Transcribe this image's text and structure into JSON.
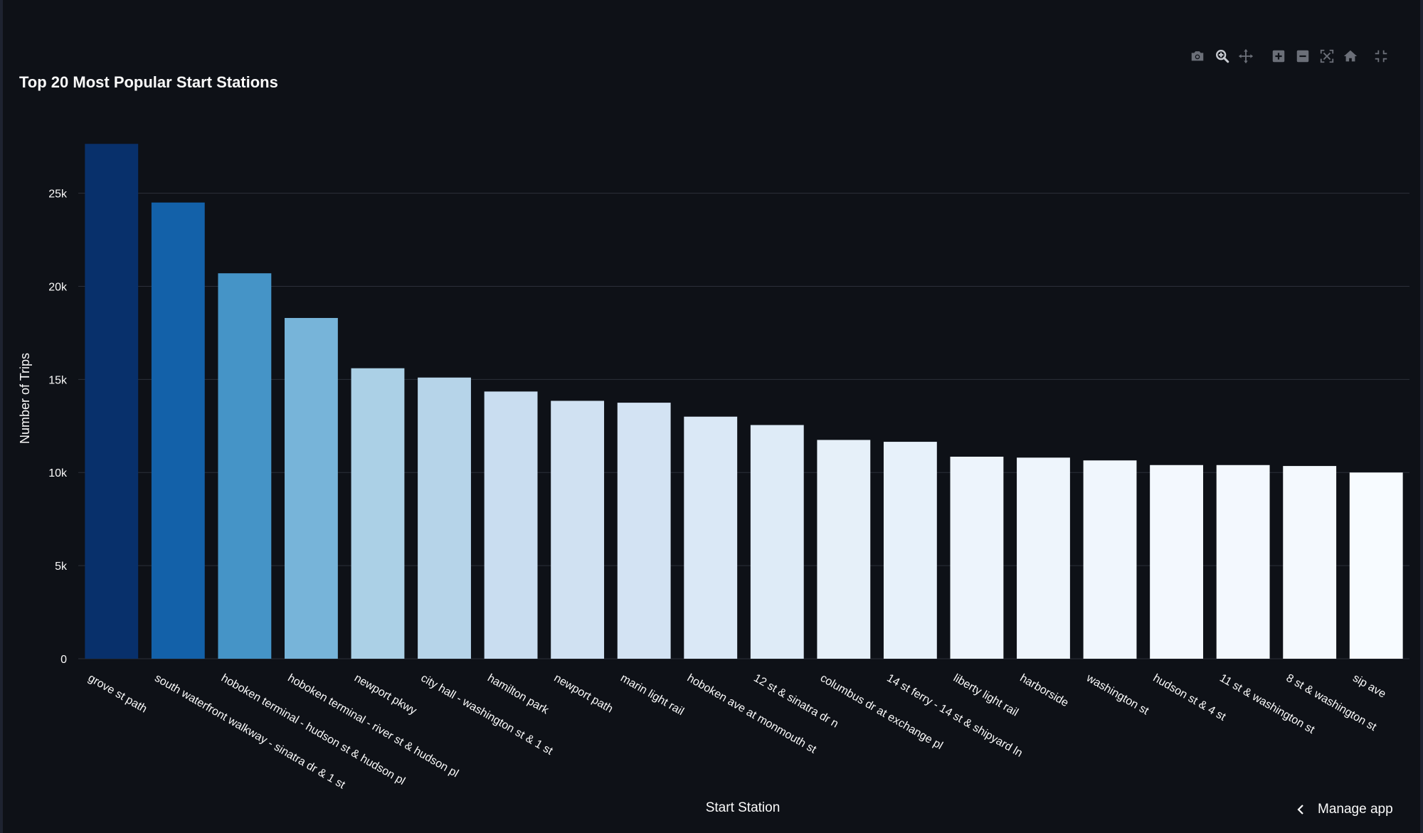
{
  "app": {
    "manage_label": "Manage app"
  },
  "modebar": {
    "icons": [
      "camera-icon",
      "zoom-icon",
      "pan-icon",
      "zoom-in-icon",
      "zoom-out-icon",
      "autoscale-icon",
      "home-icon",
      "fullscreen-icon"
    ]
  },
  "chart_data": {
    "type": "bar",
    "title": "Top 20 Most Popular Start Stations",
    "xlabel": "Start Station",
    "ylabel": "Number of Trips",
    "ylim": [
      0,
      28500
    ],
    "yticks": [
      0,
      5000,
      10000,
      15000,
      20000,
      25000
    ],
    "ytick_labels": [
      "0",
      "5k",
      "10k",
      "15k",
      "20k",
      "25k"
    ],
    "grid": true,
    "categories": [
      "grove st path",
      "south waterfront walkway - sinatra dr & 1 st",
      "hoboken terminal - hudson st & hudson pl",
      "hoboken terminal - river st & hudson pl",
      "newport pkwy",
      "city hall - washington st & 1 st",
      "hamilton park",
      "newport path",
      "marin light rail",
      "hoboken ave at monmouth st",
      "12 st & sinatra dr n",
      "columbus dr at exchange pl",
      "14 st ferry - 14 st & shipyard ln",
      "liberty light rail",
      "harborside",
      "washington st",
      "hudson st & 4 st",
      "11 st & washington st",
      "8 st & washington st",
      "sip ave"
    ],
    "values": [
      27650,
      24500,
      20700,
      18300,
      15600,
      15100,
      14350,
      13850,
      13750,
      13000,
      12550,
      11750,
      11650,
      10850,
      10800,
      10650,
      10400,
      10400,
      10350,
      10000
    ],
    "colors": [
      "#08306b",
      "#1361a9",
      "#4594c7",
      "#77b4d9",
      "#abd0e6",
      "#b6d4e9",
      "#c9ddf0",
      "#d0e1f2",
      "#d3e3f3",
      "#dae8f6",
      "#deebf7",
      "#e6f0f9",
      "#e7f1fa",
      "#edf4fc",
      "#eef5fc",
      "#f0f6fd",
      "#f3f8fe",
      "#f3f8fe",
      "#f4f9fe",
      "#f7fbff"
    ]
  }
}
